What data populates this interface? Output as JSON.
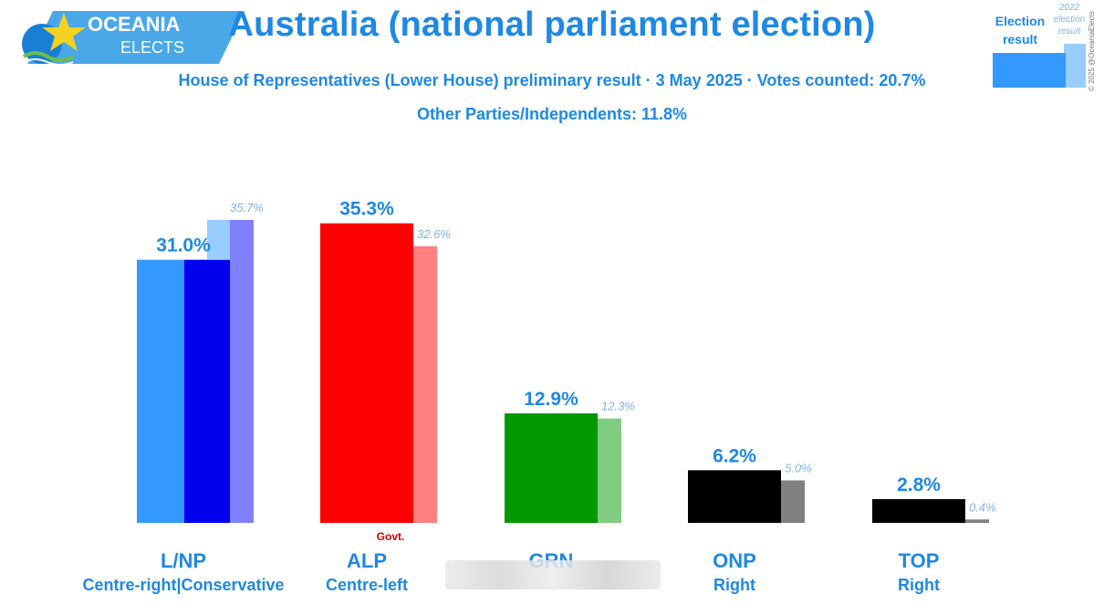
{
  "header": {
    "title": "Australia (national parliament election)",
    "subtitle": "House of Representatives (Lower House) preliminary result · 3 May 2025 · Votes counted: 20.7%",
    "others": "Other Parties/Independents: 11.8%"
  },
  "logo": {
    "line1": "OCEANIA",
    "line2": "ELECTS"
  },
  "legend": {
    "current": "Election result",
    "previous": "2022 election result"
  },
  "copyright": "© 2025 @OceaniaElects",
  "colors": {
    "accent": "#1e88e5",
    "prev_label": "#7fb3e6"
  },
  "chart_data": {
    "type": "bar",
    "categories": [
      "L/NP",
      "ALP",
      "GRN",
      "ONP",
      "TOP"
    ],
    "subcategories": [
      "Centre-right|Conservative",
      "Centre-left",
      "",
      "Right",
      "Right"
    ],
    "series": [
      {
        "name": "Election result",
        "values": [
          31.0,
          35.3,
          12.9,
          6.2,
          2.8
        ],
        "labels": [
          "31.0%",
          "35.3%",
          "12.9%",
          "6.2%",
          "2.8%"
        ]
      },
      {
        "name": "2022 election result",
        "values": [
          35.7,
          32.6,
          12.3,
          5.0,
          0.4
        ],
        "labels": [
          "35.7%",
          "32.6%",
          "12.3%",
          "5.0%",
          "0.4%"
        ]
      }
    ],
    "lnp_split": {
      "liberal": 31.0,
      "national": 31.0,
      "prev_liberal": 35.7,
      "prev_national": 35.7
    },
    "colors": {
      "current": [
        "#3399ff",
        "#ff0000",
        "#009900",
        "#000000",
        "#000000"
      ],
      "current_second": [
        "#0000ee",
        null,
        null,
        null,
        null
      ],
      "previous": [
        "#99ccff",
        "#ff8080",
        "#80cc80",
        "#808080",
        "#808080"
      ],
      "previous_second": [
        "#8080ff",
        null,
        null,
        null,
        null
      ]
    },
    "annotations": [
      {
        "category": "ALP",
        "text": "Govt.",
        "color": "#cc0000"
      }
    ],
    "ylim": [
      0,
      40
    ]
  }
}
